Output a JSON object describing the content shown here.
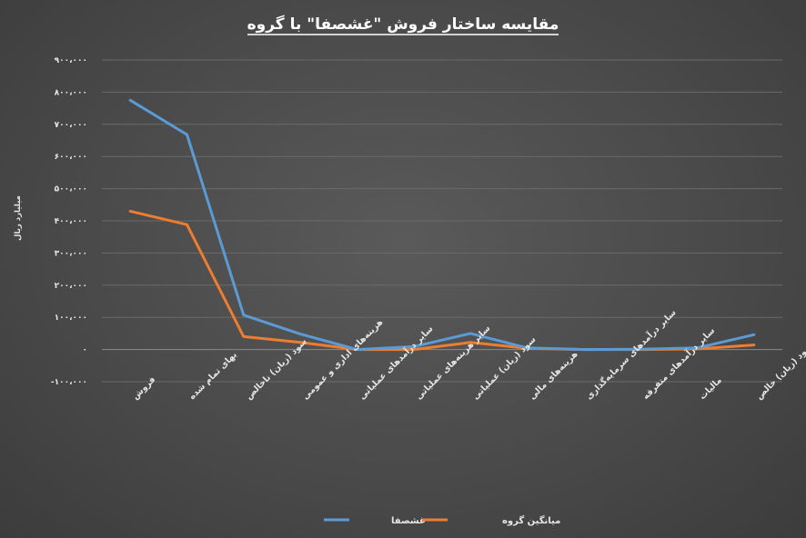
{
  "chart_data": {
    "type": "line",
    "title": "مقایسه ساختار فروش \"غشصفا\" با گروه",
    "ylabel": "میلیارد ریال",
    "xlabel": "",
    "ylim": [
      -100000,
      900000
    ],
    "yticks": [
      -100000,
      0,
      100000,
      200000,
      300000,
      400000,
      500000,
      600000,
      700000,
      800000,
      900000
    ],
    "ytick_labels": [
      "-۱۰۰،۰۰۰",
      "۰",
      "۱۰۰،۰۰۰",
      "۲۰۰،۰۰۰",
      "۳۰۰،۰۰۰",
      "۴۰۰،۰۰۰",
      "۵۰۰،۰۰۰",
      "۶۰۰،۰۰۰",
      "۷۰۰،۰۰۰",
      "۸۰۰،۰۰۰",
      "۹۰۰،۰۰۰"
    ],
    "grid": true,
    "legend_position": "bottom",
    "categories": [
      "فروش",
      "بهای تمام شده",
      "سود (زیان) ناخالص",
      "هزینه‌های اداری و عمومی",
      "سایر درآمدهای عملیاتی",
      "سایر هزینه‌های عملیاتی",
      "سود (زیان) عملیاتی",
      "هزینه‌های مالی",
      "سایر درآمدهای سرمایه‌گذاری",
      "سایر درآمدهای متفرقه",
      "مالیات",
      "سود (زیان) خالص"
    ],
    "series": [
      {
        "name": "غشصفا",
        "color": "#5b9bd5",
        "values": [
          775000,
          668000,
          107000,
          48000,
          0,
          9000,
          50000,
          5000,
          0,
          1000,
          5000,
          46000
        ]
      },
      {
        "name": "میانگین گروه",
        "color": "#ed7d31",
        "values": [
          430000,
          388000,
          40000,
          22000,
          0,
          0,
          22000,
          4000,
          0,
          0,
          2000,
          14000
        ]
      }
    ]
  }
}
